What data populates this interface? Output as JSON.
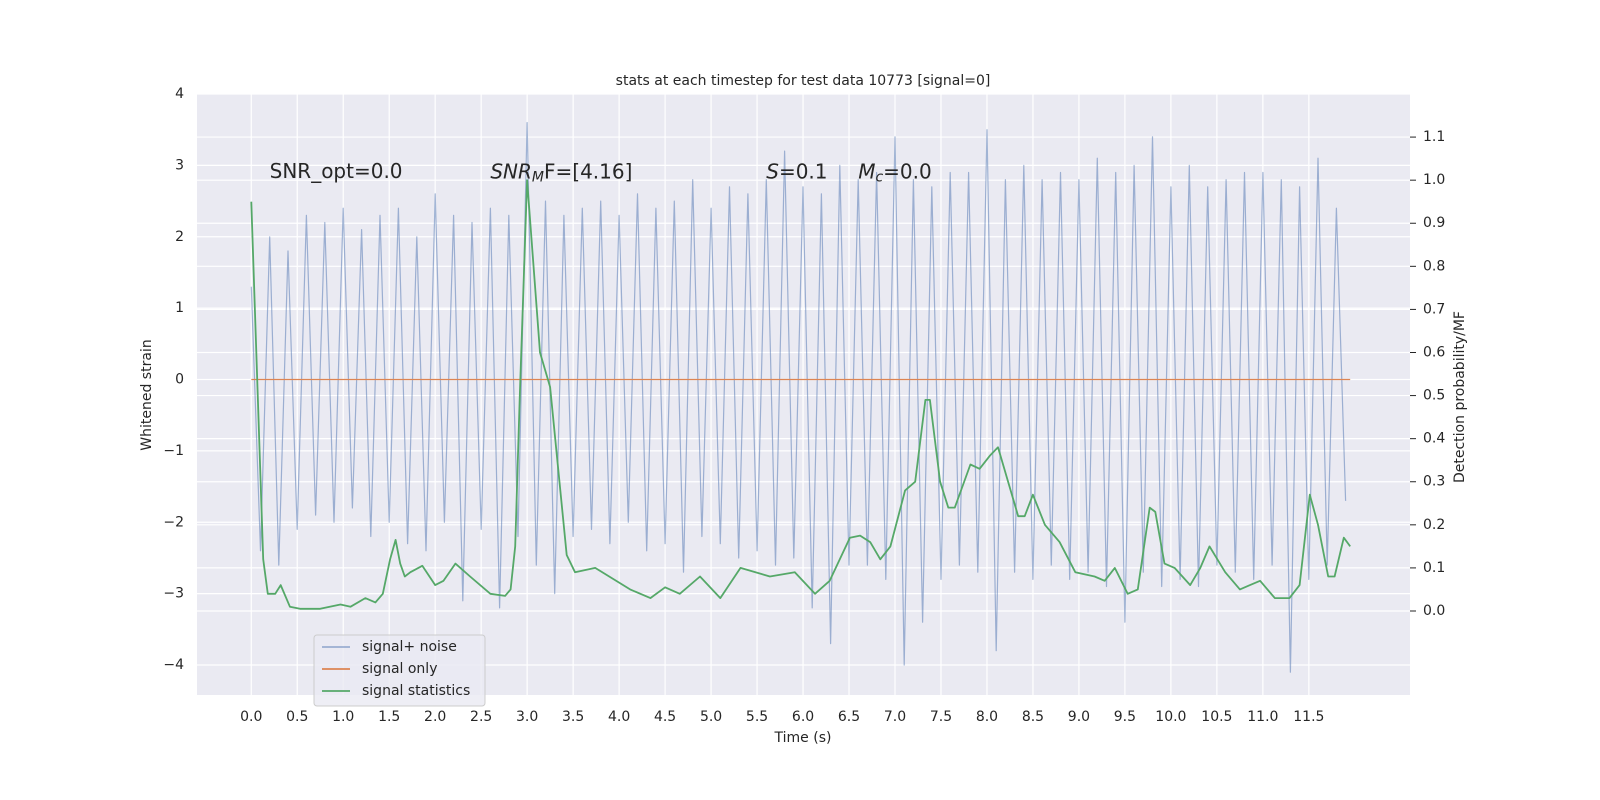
{
  "chart_data": {
    "type": "line",
    "title": "stats at each timestep for test data 10773 [signal=0]",
    "x_label": "Time (s)",
    "y_label": "Whitened strain",
    "y2_label": "Detection probability/MF",
    "xlim": [
      -0.59,
      12.6
    ],
    "ylim": [
      -4.42,
      4.0
    ],
    "y2lim": [
      -0.195,
      1.2
    ],
    "xticks": [
      {
        "value": 0,
        "label": "0.0"
      },
      {
        "value": 0.5,
        "label": "0.5"
      },
      {
        "value": 1,
        "label": "1.0"
      },
      {
        "value": 1.5,
        "label": "1.5"
      },
      {
        "value": 2,
        "label": "2.0"
      },
      {
        "value": 2.5,
        "label": "2.5"
      },
      {
        "value": 3,
        "label": "3.0"
      },
      {
        "value": 3.5,
        "label": "3.5"
      },
      {
        "value": 4,
        "label": "4.0"
      },
      {
        "value": 4.5,
        "label": "4.5"
      },
      {
        "value": 5,
        "label": "5.0"
      },
      {
        "value": 5.5,
        "label": "5.5"
      },
      {
        "value": 6,
        "label": "6.0"
      },
      {
        "value": 6.5,
        "label": "6.5"
      },
      {
        "value": 7,
        "label": "7.0"
      },
      {
        "value": 7.5,
        "label": "7.5"
      },
      {
        "value": 8,
        "label": "8.0"
      },
      {
        "value": 8.5,
        "label": "8.5"
      },
      {
        "value": 9,
        "label": "9.0"
      },
      {
        "value": 9.5,
        "label": "9.5"
      },
      {
        "value": 10,
        "label": "10.0"
      },
      {
        "value": 10.5,
        "label": "10.5"
      },
      {
        "value": 11,
        "label": "11.0"
      },
      {
        "value": 11.5,
        "label": "11.5"
      }
    ],
    "yticks": [
      {
        "value": -4,
        "label": "−4"
      },
      {
        "value": -3,
        "label": "−3"
      },
      {
        "value": -2,
        "label": "−2"
      },
      {
        "value": -1,
        "label": "−1"
      },
      0,
      1,
      2,
      3,
      4
    ],
    "y2ticks": [
      {
        "value": 0,
        "label": "0.0"
      },
      {
        "value": 0.1,
        "label": "0.1"
      },
      {
        "value": 0.2,
        "label": "0.2"
      },
      {
        "value": 0.3,
        "label": "0.3"
      },
      {
        "value": 0.4,
        "label": "0.4"
      },
      {
        "value": 0.5,
        "label": "0.5"
      },
      {
        "value": 0.6,
        "label": "0.6"
      },
      {
        "value": 0.7,
        "label": "0.7"
      },
      {
        "value": 0.8,
        "label": "0.8"
      },
      {
        "value": 0.9,
        "label": "0.9"
      },
      {
        "value": 1.0,
        "label": "1.0"
      },
      {
        "value": 1.1,
        "label": "1.1"
      }
    ],
    "grid": true,
    "legend_loc": "lower left",
    "annotations": [
      {
        "text": "SNR_opt=0.0",
        "x": 0.2,
        "y": 2.9
      },
      {
        "main": "SNR",
        "sub": "M",
        "rest": "F=[4.16]",
        "x": 2.6,
        "y": 2.9
      },
      {
        "main": "S",
        "rest": "=0.1",
        "x": 5.6,
        "y": 2.9
      },
      {
        "main": "M",
        "sub": "c",
        "rest": "=0.0",
        "x": 6.6,
        "y": 2.9
      }
    ],
    "series": [
      {
        "name": "signal+ noise",
        "color": "#4c72b0",
        "opacity": 0.5,
        "x": [
          0,
          0.1,
          0.2,
          0.3,
          0.4,
          0.5,
          0.6,
          0.7,
          0.8,
          0.9,
          1,
          1.1,
          1.2,
          1.3,
          1.4,
          1.5,
          1.6,
          1.7,
          1.8,
          1.9,
          2,
          2.1,
          2.2,
          2.3,
          2.4,
          2.5,
          2.6,
          2.7,
          2.8,
          2.9,
          3,
          3.1,
          3.2,
          3.3,
          3.4,
          3.5,
          3.6,
          3.7,
          3.8,
          3.9,
          4,
          4.1,
          4.2,
          4.3,
          4.4,
          4.5,
          4.6,
          4.7,
          4.8,
          4.9,
          5,
          5.1,
          5.2,
          5.3,
          5.4,
          5.5,
          5.6,
          5.7,
          5.8,
          5.9,
          6,
          6.1,
          6.2,
          6.3,
          6.4,
          6.5,
          6.6,
          6.7,
          6.8,
          6.9,
          7,
          7.1,
          7.2,
          7.3,
          7.4,
          7.5,
          7.6,
          7.7,
          7.8,
          7.9,
          8,
          8.1,
          8.2,
          8.3,
          8.4,
          8.5,
          8.6,
          8.7,
          8.8,
          8.9,
          9,
          9.1,
          9.2,
          9.3,
          9.4,
          9.5,
          9.6,
          9.7,
          9.8,
          9.9,
          10,
          10.1,
          10.2,
          10.3,
          10.4,
          10.5,
          10.6,
          10.7,
          10.8,
          10.9,
          11,
          11.1,
          11.2,
          11.3,
          11.4,
          11.5,
          11.6,
          11.7,
          11.8,
          11.9
        ],
        "values": [
          1.3,
          -2.4,
          2.0,
          -2.6,
          1.8,
          -2.1,
          2.3,
          -1.9,
          2.2,
          -2.0,
          2.4,
          -1.8,
          2.1,
          -2.2,
          2.3,
          -2.0,
          2.4,
          -2.3,
          2.0,
          -2.4,
          2.6,
          -2.0,
          2.3,
          -3.1,
          2.2,
          -2.1,
          2.4,
          -3.2,
          2.3,
          -2.2,
          3.6,
          -2.6,
          2.5,
          -3.0,
          2.3,
          -2.2,
          2.4,
          -2.1,
          2.5,
          -2.3,
          2.3,
          -2.0,
          2.6,
          -2.4,
          2.4,
          -2.3,
          2.5,
          -2.7,
          2.8,
          -2.2,
          2.4,
          -2.3,
          2.7,
          -2.5,
          2.6,
          -2.4,
          2.8,
          -2.6,
          3.2,
          -2.5,
          2.7,
          -3.2,
          2.6,
          -3.7,
          3.0,
          -2.6,
          2.8,
          -2.6,
          2.9,
          -2.8,
          3.4,
          -4.0,
          2.8,
          -3.4,
          2.7,
          -2.8,
          2.9,
          -2.6,
          2.9,
          -2.7,
          3.5,
          -3.8,
          2.8,
          -2.7,
          3.0,
          -2.8,
          2.8,
          -2.6,
          2.9,
          -2.8,
          2.8,
          -2.7,
          3.1,
          -2.9,
          2.9,
          -3.4,
          3.0,
          -2.7,
          3.4,
          -2.9,
          2.7,
          -2.8,
          3.0,
          -2.9,
          2.7,
          -2.6,
          2.8,
          -2.7,
          2.9,
          -2.8,
          2.9,
          -2.6,
          2.8,
          -4.1,
          2.7,
          -2.8,
          3.1,
          -2.6,
          2.4,
          -1.7
        ]
      },
      {
        "name": "signal only",
        "color": "#dd8452",
        "opacity": 1,
        "x": [
          0,
          11.95
        ],
        "values": [
          0,
          0
        ]
      },
      {
        "name": "signal statistics",
        "color": "#55a868",
        "opacity": 1,
        "axis": "y2",
        "x": [
          0,
          0.13,
          0.18,
          0.26,
          0.32,
          0.42,
          0.53,
          0.75,
          0.97,
          1.08,
          1.24,
          1.35,
          1.43,
          1.51,
          1.57,
          1.62,
          1.67,
          1.73,
          1.86,
          2.0,
          2.09,
          2.22,
          2.38,
          2.6,
          2.76,
          2.82,
          2.87,
          2.92,
          3.0,
          3.14,
          3.25,
          3.43,
          3.52,
          3.74,
          4.12,
          4.34,
          4.5,
          4.66,
          4.88,
          5.1,
          5.32,
          5.64,
          5.91,
          6.13,
          6.29,
          6.51,
          6.62,
          6.73,
          6.84,
          6.95,
          7.11,
          7.22,
          7.33,
          7.38,
          7.49,
          7.58,
          7.65,
          7.82,
          7.92,
          8.03,
          8.12,
          8.23,
          8.34,
          8.41,
          8.5,
          8.63,
          8.79,
          8.96,
          9.17,
          9.28,
          9.39,
          9.53,
          9.64,
          9.77,
          9.83,
          9.93,
          10.04,
          10.21,
          10.32,
          10.42,
          10.59,
          10.75,
          10.86,
          10.97,
          11.13,
          11.29,
          11.4,
          11.51,
          11.6,
          11.71,
          11.78,
          11.88,
          11.95
        ],
        "values": [
          0.95,
          0.12,
          0.04,
          0.04,
          0.06,
          0.01,
          0.005,
          0.005,
          0.015,
          0.01,
          0.03,
          0.02,
          0.04,
          0.12,
          0.165,
          0.11,
          0.08,
          0.09,
          0.105,
          0.06,
          0.07,
          0.11,
          0.08,
          0.04,
          0.035,
          0.05,
          0.15,
          0.5,
          1.0,
          0.6,
          0.52,
          0.13,
          0.09,
          0.1,
          0.05,
          0.03,
          0.055,
          0.04,
          0.08,
          0.03,
          0.1,
          0.08,
          0.09,
          0.04,
          0.07,
          0.17,
          0.175,
          0.16,
          0.12,
          0.15,
          0.28,
          0.3,
          0.49,
          0.49,
          0.3,
          0.24,
          0.24,
          0.34,
          0.33,
          0.36,
          0.38,
          0.3,
          0.22,
          0.22,
          0.27,
          0.2,
          0.16,
          0.09,
          0.08,
          0.07,
          0.1,
          0.04,
          0.05,
          0.24,
          0.23,
          0.11,
          0.1,
          0.06,
          0.1,
          0.15,
          0.09,
          0.05,
          0.06,
          0.07,
          0.03,
          0.03,
          0.06,
          0.27,
          0.2,
          0.08,
          0.08,
          0.17,
          0.15
        ]
      }
    ]
  }
}
